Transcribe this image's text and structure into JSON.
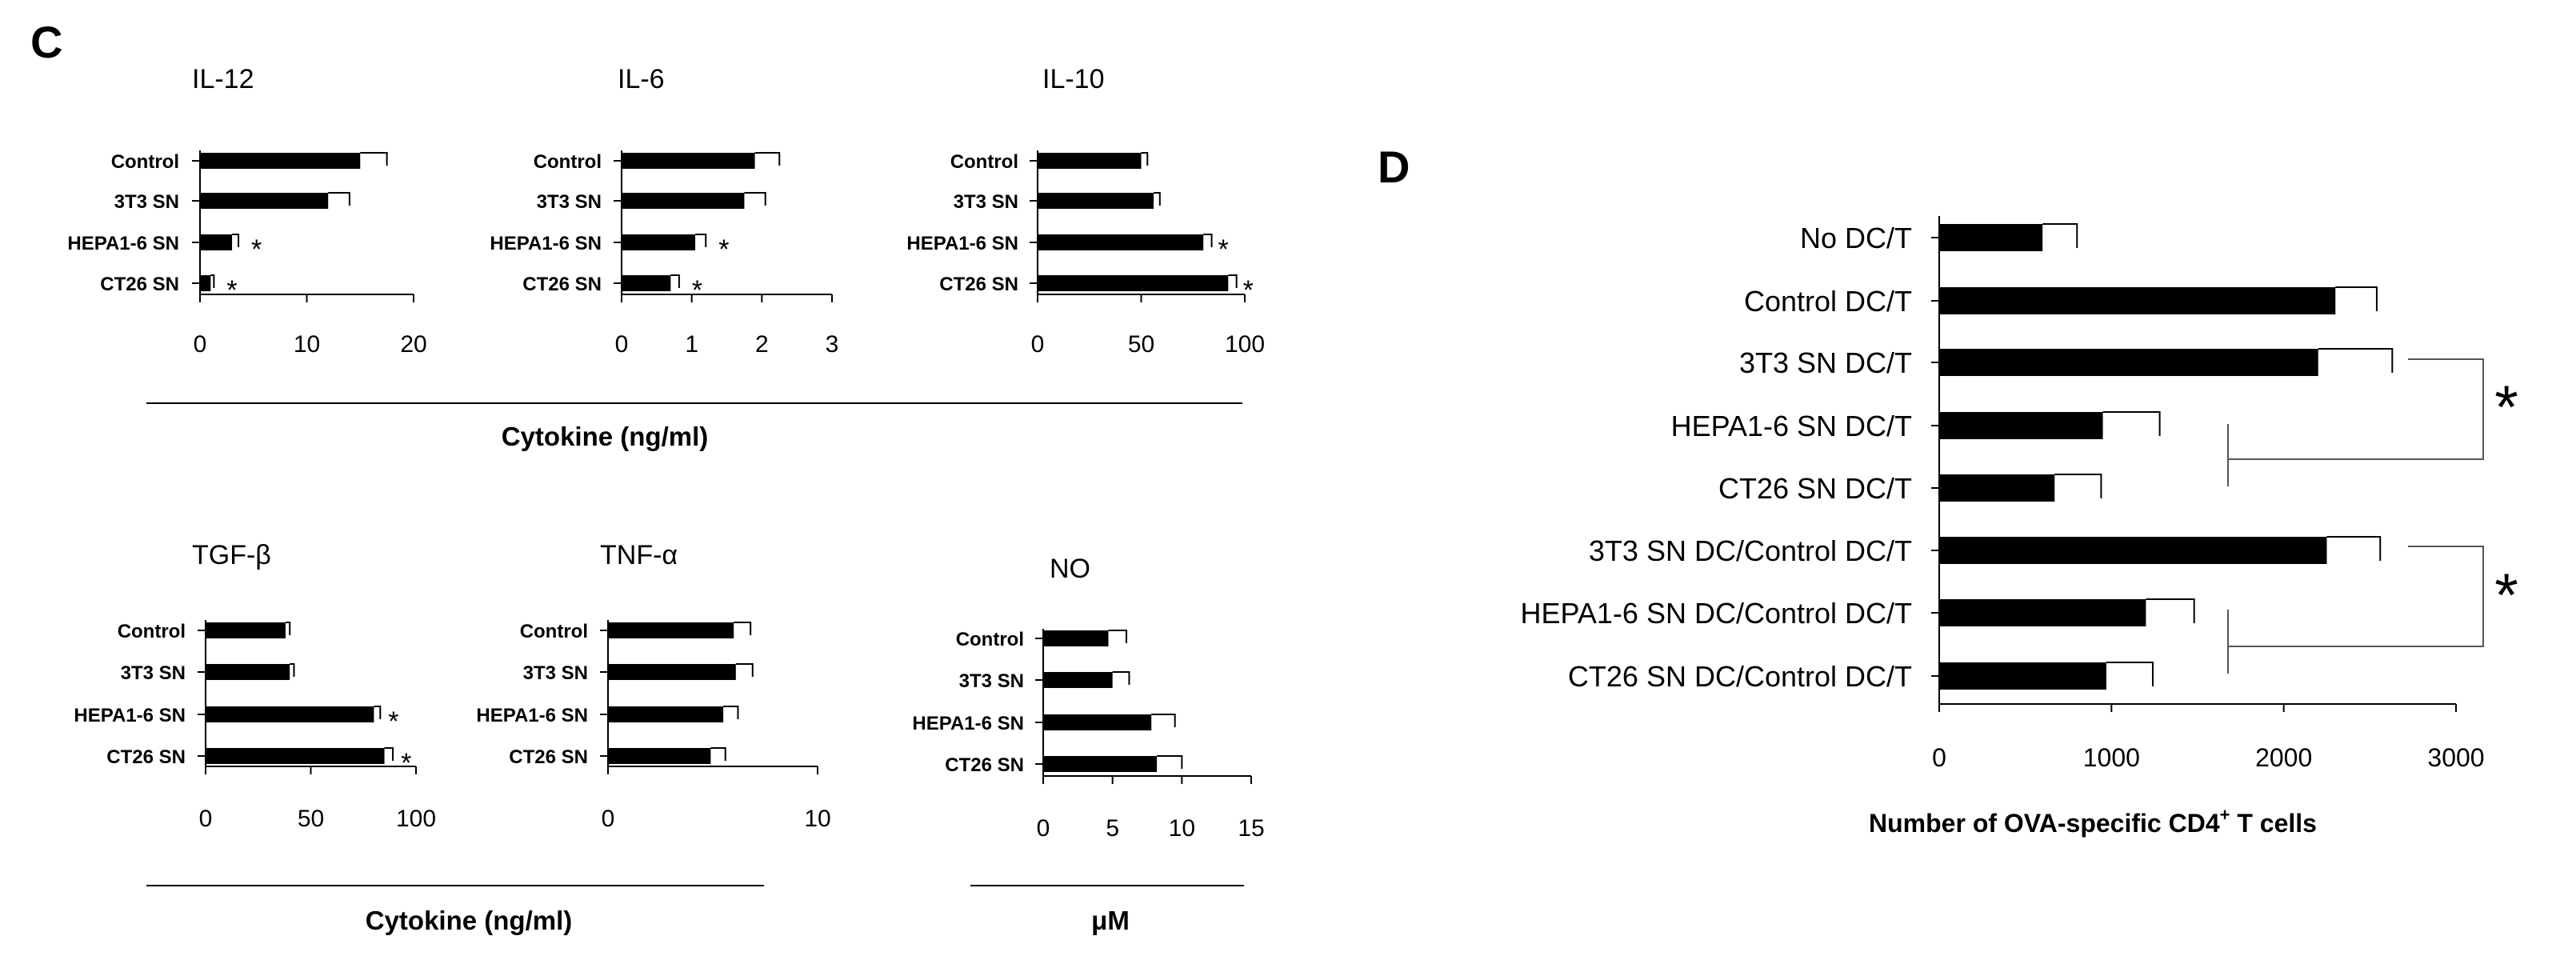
{
  "panels": {
    "C": "C",
    "D": "D"
  },
  "group_labels": {
    "top": "Cytokine (ng/ml)",
    "bottom_left": "Cytokine (ng/ml)",
    "bottom_right": "μM"
  },
  "significance_marker": "*",
  "colors": {
    "bar": "#000000",
    "axis": "#000000",
    "error_bar": "#000000",
    "background": "#ffffff"
  },
  "chart_data": [
    {
      "id": "il12",
      "type": "bar",
      "orientation": "horizontal",
      "title": "IL-12",
      "categories": [
        "Control",
        "3T3 SN",
        "HEPA1-6 SN",
        "CT26 SN"
      ],
      "values": [
        15,
        12,
        3,
        1
      ],
      "errors": [
        2.5,
        2,
        0.6,
        0.3
      ],
      "significant": [
        false,
        false,
        true,
        true
      ],
      "xlim": [
        0,
        20
      ],
      "xticks": [
        "0",
        "10",
        "20"
      ]
    },
    {
      "id": "il6",
      "type": "bar",
      "orientation": "horizontal",
      "title": "IL-6",
      "categories": [
        "Control",
        "3T3 SN",
        "HEPA1-6 SN",
        "CT26 SN"
      ],
      "values": [
        1.9,
        1.75,
        1.05,
        0.7
      ],
      "errors": [
        0.35,
        0.3,
        0.15,
        0.12
      ],
      "significant": [
        false,
        false,
        true,
        true
      ],
      "xlim": [
        0,
        3
      ],
      "xticks": [
        "0",
        "1",
        "2",
        "3"
      ]
    },
    {
      "id": "il10",
      "type": "bar",
      "orientation": "horizontal",
      "title": "IL-10",
      "categories": [
        "Control",
        "3T3 SN",
        "HEPA1-6 SN",
        "CT26 SN"
      ],
      "values": [
        50,
        56,
        80,
        92
      ],
      "errors": [
        3,
        3,
        4,
        4
      ],
      "significant": [
        false,
        false,
        true,
        true
      ],
      "xlim": [
        0,
        100
      ],
      "xticks": [
        "0",
        "50",
        "100"
      ]
    },
    {
      "id": "tgfb",
      "type": "bar",
      "orientation": "horizontal",
      "title": "TGF-β",
      "categories": [
        "Control",
        "3T3 SN",
        "HEPA1-6 SN",
        "CT26 SN"
      ],
      "values": [
        38,
        40,
        80,
        85
      ],
      "errors": [
        2,
        2,
        3,
        4
      ],
      "significant": [
        false,
        false,
        true,
        true
      ],
      "xlim": [
        0,
        100
      ],
      "xticks": [
        "0",
        "50",
        "100"
      ]
    },
    {
      "id": "tnfa",
      "type": "bar",
      "orientation": "horizontal",
      "title": "TNF-α",
      "categories": [
        "Control",
        "3T3 SN",
        "HEPA1-6 SN",
        "CT26 SN"
      ],
      "values": [
        6,
        6.1,
        5.5,
        4.9
      ],
      "errors": [
        0.8,
        0.8,
        0.7,
        0.7
      ],
      "significant": [
        false,
        false,
        false,
        false
      ],
      "xlim": [
        0,
        10
      ],
      "xticks": [
        "0",
        "10"
      ]
    },
    {
      "id": "no",
      "type": "bar",
      "orientation": "horizontal",
      "title": "NO",
      "categories": [
        "Control",
        "3T3 SN",
        "HEPA1-6 SN",
        "CT26 SN"
      ],
      "values": [
        4.7,
        5.0,
        7.8,
        8.2
      ],
      "errors": [
        1.3,
        1.2,
        1.7,
        1.8
      ],
      "significant": [
        false,
        false,
        false,
        false
      ],
      "xlim": [
        0,
        15
      ],
      "xticks": [
        "0",
        "5",
        "10",
        "15"
      ]
    },
    {
      "id": "d",
      "type": "bar",
      "orientation": "horizontal",
      "title": "",
      "categories": [
        "No DC/T",
        "Control DC/T",
        "3T3 SN DC/T",
        "HEPA1-6 SN DC/T",
        "CT26 SN DC/T",
        "3T3 SN DC/Control DC/T",
        "HEPA1-6 SN DC/Control DC/T",
        "CT26 SN DC/Control DC/T"
      ],
      "values": [
        600,
        2300,
        2200,
        950,
        670,
        2250,
        1200,
        970
      ],
      "errors": [
        200,
        240,
        430,
        330,
        270,
        310,
        280,
        270
      ],
      "xlim": [
        0,
        3000
      ],
      "xticks": [
        "0",
        "1000",
        "2000",
        "3000"
      ],
      "xlabel": "Number  of OVA-specific CD4",
      "xlabel_superscript": "+",
      "xlabel_suffix": " T cells"
    }
  ]
}
